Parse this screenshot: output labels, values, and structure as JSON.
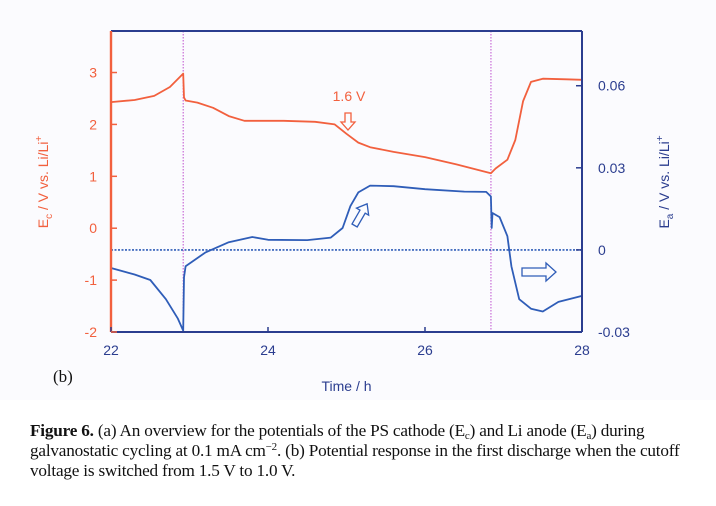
{
  "figure": {
    "panel_label": "(b)",
    "caption": {
      "label": "Figure 6.",
      "part1": " (a) An overview for the potentials of the PS cathode (E",
      "sub_c": "c",
      "part2": ") and Li anode (E",
      "sub_a": "a",
      "part3": ") during galvanostatic cycling at 0.1 mA cm",
      "sup": "−2",
      "part4": ". (b) Potential response in the first discharge when the cutoff voltage is switched from 1.5 V to 1.0 V."
    }
  },
  "colors": {
    "cathode": "#f2603e",
    "anode": "#2f5db8",
    "axis_dark": "#2b3d8f",
    "marker_line": "#c86dd7"
  },
  "chart_data": {
    "type": "line",
    "title": "",
    "xlabel": "Time / h",
    "ylabel_left": {
      "main": "E",
      "sub": "c",
      "rest": " / V vs. Li/Li",
      "sup": "+"
    },
    "ylabel_right": {
      "main": "E",
      "sub": "a",
      "rest": " / V vs. Li/Li",
      "sup": "+"
    },
    "xlim": [
      22,
      28
    ],
    "ylim_left": [
      -2,
      3.8
    ],
    "ylim_right": [
      -0.03,
      0.08
    ],
    "xticks": [
      22,
      24,
      26,
      28
    ],
    "xtick_labels": [
      "22",
      "24",
      "26",
      "28"
    ],
    "yticks_left": [
      -2,
      -1,
      0,
      1,
      2,
      3
    ],
    "ytick_labels_left": [
      "-2",
      "-1",
      "0",
      "1",
      "2",
      "3"
    ],
    "yticks_right": [
      -0.03,
      0,
      0.03,
      0.06
    ],
    "ytick_labels_right": [
      "-0.03",
      "0",
      "0.03",
      "0.06"
    ],
    "grid": false,
    "vertical_markers": [
      22.92,
      26.84
    ],
    "horizontal_reference": {
      "axis": "right",
      "value": 0
    },
    "annotations": [
      {
        "text": "1.6 V",
        "x": 25.2,
        "y": 2.6,
        "axis": "left",
        "color": "cathode",
        "arrow": "down"
      },
      {
        "text": "",
        "x": 25.15,
        "y": 0.011,
        "axis": "right",
        "color": "anode",
        "arrow": "up-right"
      },
      {
        "text": "",
        "x": 27.55,
        "y": -0.0075,
        "axis": "right",
        "color": "anode",
        "arrow": "right"
      }
    ],
    "series": [
      {
        "name": "Ec (cathode)",
        "axis": "left",
        "color": "cathode",
        "x": [
          22.0,
          22.3,
          22.55,
          22.75,
          22.92,
          22.93,
          22.95,
          23.1,
          23.3,
          23.5,
          23.7,
          24.2,
          24.6,
          24.85,
          25.0,
          25.15,
          25.3,
          25.6,
          26.0,
          26.4,
          26.84,
          26.9,
          27.05,
          27.15,
          27.25,
          27.35,
          27.5,
          27.8,
          28.0
        ],
        "y": [
          2.43,
          2.47,
          2.55,
          2.72,
          2.98,
          2.52,
          2.46,
          2.42,
          2.32,
          2.16,
          2.07,
          2.07,
          2.05,
          2.0,
          1.82,
          1.65,
          1.56,
          1.47,
          1.37,
          1.23,
          1.06,
          1.15,
          1.32,
          1.7,
          2.45,
          2.82,
          2.88,
          2.87,
          2.86
        ]
      },
      {
        "name": "Ea (anode)",
        "axis": "right",
        "color": "anode",
        "x": [
          22.0,
          22.3,
          22.5,
          22.7,
          22.85,
          22.92,
          22.93,
          22.95,
          23.2,
          23.5,
          23.8,
          24.0,
          24.5,
          24.8,
          24.95,
          25.05,
          25.15,
          25.3,
          25.6,
          26.0,
          26.5,
          26.78,
          26.84,
          26.85,
          26.86,
          26.95,
          27.05,
          27.1,
          27.2,
          27.35,
          27.5,
          27.7,
          28.0
        ],
        "y": [
          -0.0066,
          -0.009,
          -0.011,
          -0.018,
          -0.025,
          -0.0295,
          -0.01,
          -0.006,
          -0.001,
          0.0028,
          0.0047,
          0.0037,
          0.0036,
          0.0045,
          0.008,
          0.016,
          0.021,
          0.0235,
          0.0233,
          0.0222,
          0.0213,
          0.0212,
          0.0195,
          0.008,
          0.0135,
          0.012,
          0.005,
          -0.006,
          -0.018,
          -0.0215,
          -0.0225,
          -0.019,
          -0.0168
        ]
      }
    ]
  }
}
